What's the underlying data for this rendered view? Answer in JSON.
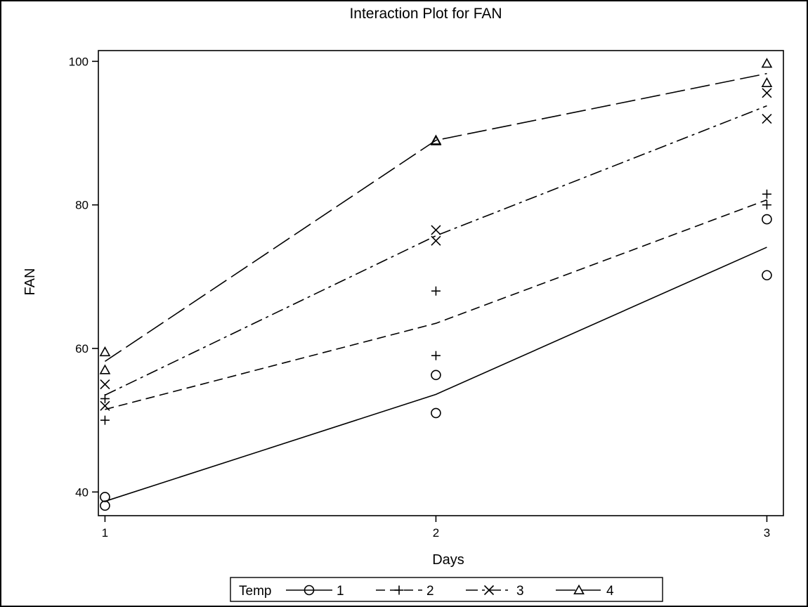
{
  "chart_data": {
    "type": "line",
    "title": "Interaction Plot for FAN",
    "xlabel": "Days",
    "ylabel": "FAN",
    "x": [
      1,
      2,
      3
    ],
    "xlim": [
      0.98,
      3.05
    ],
    "ylim": [
      36.7,
      101.5
    ],
    "xticks": [
      "1",
      "2",
      "3"
    ],
    "yticks": [
      "40",
      "60",
      "80",
      "100"
    ],
    "grid": false,
    "legend": {
      "title": "Temp",
      "position": "bottom"
    },
    "series": [
      {
        "name": "1",
        "marker": "circle",
        "line_style": "solid",
        "means": [
          38.7,
          53.6,
          74.1
        ],
        "points": [
          [
            1,
            39.3
          ],
          [
            1,
            38.1
          ],
          [
            2,
            56.3
          ],
          [
            2,
            51.0
          ],
          [
            3,
            78.0
          ],
          [
            3,
            70.2
          ]
        ]
      },
      {
        "name": "2",
        "marker": "plus",
        "line_style": "short-dash",
        "means": [
          51.5,
          63.5,
          80.7
        ],
        "points": [
          [
            1,
            53.0
          ],
          [
            1,
            50.0
          ],
          [
            2,
            68.0
          ],
          [
            2,
            59.0
          ],
          [
            3,
            81.5
          ],
          [
            3,
            80.0
          ]
        ]
      },
      {
        "name": "3",
        "marker": "x",
        "line_style": "dash-dot",
        "means": [
          53.5,
          75.7,
          93.8
        ],
        "points": [
          [
            1,
            55.0
          ],
          [
            1,
            52.0
          ],
          [
            2,
            76.5
          ],
          [
            2,
            75.0
          ],
          [
            3,
            95.6
          ],
          [
            3,
            92.0
          ]
        ]
      },
      {
        "name": "4",
        "marker": "triangle",
        "line_style": "long-dash",
        "means": [
          58.2,
          89.0,
          98.3
        ],
        "points": [
          [
            1,
            59.5
          ],
          [
            1,
            57.0
          ],
          [
            2,
            89.0
          ],
          [
            2,
            88.9
          ],
          [
            3,
            99.7
          ],
          [
            3,
            97.0
          ]
        ]
      }
    ]
  }
}
